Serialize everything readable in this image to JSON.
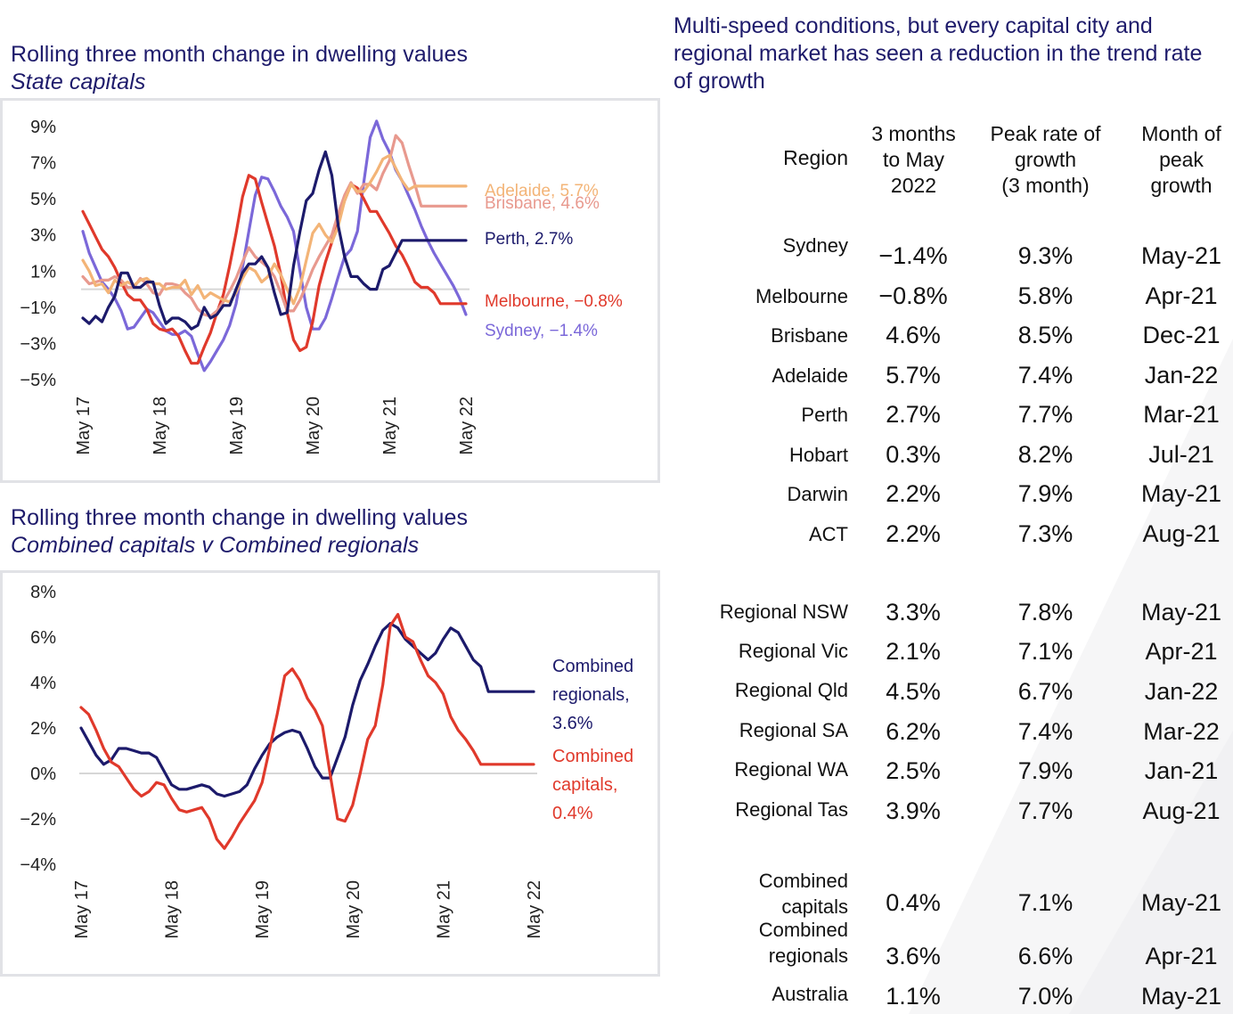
{
  "chart_data": [
    {
      "type": "line",
      "title": "Rolling three month change in dwelling values",
      "subtitle": "State capitals",
      "xlabel": "",
      "ylabel": "",
      "x_start": "May 17",
      "x_end": "May 22",
      "frequency": "monthly",
      "x_tick_labels": [
        "May 17",
        "May 18",
        "May 19",
        "May 20",
        "May 21",
        "May 22"
      ],
      "y_tick_labels": [
        "9%",
        "7%",
        "5%",
        "3%",
        "1%",
        "-1%",
        "-3%",
        "-5%"
      ],
      "ylim": [
        -5,
        9
      ],
      "zero_line": true,
      "grid": false,
      "legend": "end-labels-right",
      "series": [
        {
          "name": "Sydney",
          "label": "Sydney, -1.4%",
          "color": "#7b68d9",
          "values": [
            3.2,
            2.0,
            1.2,
            0.4,
            0.0,
            -0.5,
            -1.2,
            -2.2,
            -2.1,
            -1.6,
            -1.1,
            -1.3,
            -1.8,
            -2.3,
            -2.5,
            -2.5,
            -2.3,
            -2.6,
            -3.6,
            -4.5,
            -4.0,
            -3.4,
            -2.8,
            -2.0,
            -0.8,
            1.2,
            3.2,
            5.2,
            6.2,
            6.1,
            5.4,
            4.6,
            4.0,
            3.2,
            1.0,
            -1.0,
            -2.2,
            -2.2,
            -1.6,
            -0.5,
            0.7,
            1.8,
            2.2,
            3.2,
            5.9,
            8.4,
            9.3,
            8.3,
            7.6,
            6.6,
            6.0,
            5.2,
            4.4,
            3.5,
            2.7,
            2.0,
            1.4,
            0.8,
            0.2,
            -0.5,
            -1.4
          ]
        },
        {
          "name": "Melbourne",
          "label": "Melbourne, -0.8%",
          "color": "#e0392b",
          "values": [
            4.3,
            3.6,
            2.9,
            2.2,
            1.8,
            1.2,
            0.4,
            -0.3,
            -0.6,
            -0.6,
            -1.1,
            -1.9,
            -2.2,
            -2.3,
            -2.2,
            -2.6,
            -3.4,
            -4.1,
            -4.1,
            -3.2,
            -2.4,
            -1.3,
            -0.3,
            1.3,
            3.1,
            5.1,
            6.3,
            6.1,
            4.8,
            3.6,
            2.4,
            0.8,
            -1.3,
            -2.8,
            -3.4,
            -3.2,
            -1.8,
            0.2,
            1.5,
            2.6,
            3.8,
            4.9,
            5.8,
            5.6,
            5.0,
            4.3,
            4.3,
            3.7,
            3.1,
            2.4,
            1.9,
            1.2,
            0.4,
            0.1,
            0.1,
            -0.2,
            -0.8,
            -0.8,
            -0.8,
            -0.8,
            -0.8
          ]
        },
        {
          "name": "Brisbane",
          "label": "Brisbane, 4.6%",
          "color": "#e8998e",
          "values": [
            0.7,
            0.3,
            0.4,
            0.5,
            0.5,
            0.7,
            0.5,
            0.1,
            0.1,
            0.6,
            0.3,
            -0.2,
            -0.3,
            0.3,
            0.3,
            0.2,
            -0.2,
            -0.5,
            -1.1,
            -1.4,
            -1.5,
            -1.2,
            -0.7,
            -0.1,
            0.6,
            1.5,
            2.3,
            1.8,
            1.5,
            1.2,
            0.7,
            -0.2,
            -1.2,
            -1.2,
            -0.6,
            0.2,
            1.1,
            1.8,
            2.4,
            3.0,
            4.2,
            5.2,
            5.9,
            5.3,
            5.8,
            5.8,
            5.5,
            6.4,
            7.1,
            8.5,
            8.1,
            6.9,
            5.8,
            4.6,
            4.6,
            4.6,
            4.6,
            4.6,
            4.6,
            4.6,
            4.6
          ]
        },
        {
          "name": "Adelaide",
          "label": "Adelaide, 5.7%",
          "color": "#f3b477",
          "values": [
            1.6,
            1.0,
            0.2,
            0.3,
            -0.2,
            0.5,
            0.2,
            0.4,
            0.2,
            0.5,
            0.6,
            0.3,
            0.3,
            0.0,
            0.1,
            0.1,
            0.5,
            -0.3,
            0.2,
            -0.5,
            -0.2,
            -0.4,
            -0.6,
            -0.7,
            -0.2,
            0.6,
            1.2,
            1.0,
            0.4,
            0.7,
            1.4,
            0.8,
            0.0,
            -0.8,
            0.1,
            1.6,
            3.1,
            3.6,
            3.0,
            2.6,
            3.5,
            4.9,
            5.8,
            5.4,
            5.4,
            5.9,
            6.5,
            7.2,
            7.4,
            6.7,
            6.0,
            5.5,
            5.7,
            5.7,
            5.7,
            5.7,
            5.7,
            5.7,
            5.7,
            5.7,
            5.7
          ]
        },
        {
          "name": "Perth",
          "label": "Perth, 2.7%",
          "color": "#1c1a6b",
          "values": [
            -1.6,
            -1.9,
            -1.5,
            -1.8,
            -1.0,
            -0.4,
            0.9,
            0.9,
            0.1,
            0.1,
            0.4,
            0.4,
            -0.9,
            -1.9,
            -1.6,
            -1.6,
            -1.8,
            -2.2,
            -2.0,
            -1.0,
            -1.6,
            -1.4,
            -0.9,
            -0.9,
            0.0,
            0.9,
            1.4,
            1.4,
            1.8,
            1.2,
            -0.2,
            -1.4,
            -1.3,
            1.3,
            3.2,
            4.9,
            5.3,
            6.6,
            7.6,
            6.3,
            3.5,
            1.8,
            0.7,
            0.7,
            0.3,
            0.0,
            0.0,
            1.1,
            1.3,
            2.0,
            2.7,
            2.7,
            2.7,
            2.7,
            2.7,
            2.7,
            2.7,
            2.7,
            2.7,
            2.7,
            2.7
          ]
        }
      ]
    },
    {
      "type": "line",
      "title": "Rolling three month change in dwelling values",
      "subtitle": "Combined capitals v Combined regionals",
      "xlabel": "",
      "ylabel": "",
      "x_start": "May 17",
      "x_end": "May 22",
      "frequency": "monthly",
      "x_tick_labels": [
        "May 17",
        "May 18",
        "May 19",
        "May 20",
        "May 21",
        "May 22"
      ],
      "y_tick_labels": [
        "8%",
        "6%",
        "4%",
        "2%",
        "0%",
        "-2%",
        "-4%"
      ],
      "ylim": [
        -4,
        8
      ],
      "zero_line": true,
      "grid": false,
      "legend": "end-labels-right",
      "series": [
        {
          "name": "Combined regionals",
          "label_lines": [
            "Combined",
            "regionals,",
            "3.6%"
          ],
          "color": "#1c1a6b",
          "values": [
            2.0,
            1.4,
            0.8,
            0.4,
            0.6,
            1.1,
            1.1,
            1.0,
            0.9,
            0.9,
            0.7,
            0.1,
            -0.5,
            -0.7,
            -0.7,
            -0.6,
            -0.5,
            -0.6,
            -0.9,
            -1.0,
            -0.9,
            -0.8,
            -0.5,
            0.2,
            0.8,
            1.3,
            1.6,
            1.8,
            1.9,
            1.8,
            1.1,
            0.3,
            -0.2,
            -0.2,
            0.7,
            1.6,
            3.0,
            4.1,
            4.8,
            5.6,
            6.3,
            6.6,
            6.4,
            5.9,
            5.6,
            5.3,
            5.0,
            5.3,
            5.9,
            6.4,
            6.2,
            5.6,
            5.0,
            4.7,
            3.6,
            3.6,
            3.6,
            3.6,
            3.6,
            3.6,
            3.6
          ]
        },
        {
          "name": "Combined capitals",
          "label_lines": [
            "Combined",
            "capitals,",
            "0.4%"
          ],
          "color": "#e0392b",
          "values": [
            2.9,
            2.6,
            1.9,
            1.1,
            0.5,
            0.3,
            -0.2,
            -0.7,
            -1.0,
            -0.8,
            -0.4,
            -0.5,
            -1.1,
            -1.6,
            -1.7,
            -1.6,
            -1.5,
            -2.0,
            -2.9,
            -3.3,
            -2.8,
            -2.2,
            -1.7,
            -1.2,
            -0.4,
            1.1,
            2.6,
            4.3,
            4.6,
            4.1,
            3.3,
            2.8,
            2.1,
            0.0,
            -2.0,
            -2.1,
            -1.4,
            0.0,
            1.5,
            2.1,
            3.9,
            6.5,
            7.0,
            6.0,
            5.8,
            5.0,
            4.3,
            4.0,
            3.5,
            2.5,
            1.9,
            1.5,
            1.0,
            0.4,
            0.4,
            0.4,
            0.4,
            0.4,
            0.4,
            0.4,
            0.4
          ]
        }
      ]
    }
  ],
  "left": {
    "chart1_title": "Rolling three month change in dwelling values",
    "chart1_subtitle": "State capitals",
    "chart2_title": "Rolling three month change in dwelling values",
    "chart2_subtitle": "Combined capitals v Combined regionals"
  },
  "table": {
    "title": "Multi-speed conditions, but every capital city and regional market has seen a reduction in the trend rate of growth",
    "headers": {
      "region": "Region",
      "three_month": [
        "3 months",
        "to May",
        "2022"
      ],
      "peak_rate": [
        "Peak rate of",
        "growth",
        "(3 month)"
      ],
      "peak_month": [
        "Month of",
        "peak",
        "growth"
      ]
    },
    "groups": [
      [
        {
          "region": "Sydney",
          "change": "-1.4%",
          "peak": "9.3%",
          "month": "May-21"
        },
        {
          "region": "Melbourne",
          "change": "-0.8%",
          "peak": "5.8%",
          "month": "Apr-21"
        },
        {
          "region": "Brisbane",
          "change": "4.6%",
          "peak": "8.5%",
          "month": "Dec-21"
        },
        {
          "region": "Adelaide",
          "change": "5.7%",
          "peak": "7.4%",
          "month": "Jan-22"
        },
        {
          "region": "Perth",
          "change": "2.7%",
          "peak": "7.7%",
          "month": "Mar-21"
        },
        {
          "region": "Hobart",
          "change": "0.3%",
          "peak": "8.2%",
          "month": "Jul-21"
        },
        {
          "region": "Darwin",
          "change": "2.2%",
          "peak": "7.9%",
          "month": "May-21"
        },
        {
          "region": "ACT",
          "change": "2.2%",
          "peak": "7.3%",
          "month": "Aug-21"
        }
      ],
      [
        {
          "region": "Regional NSW",
          "change": "3.3%",
          "peak": "7.8%",
          "month": "May-21"
        },
        {
          "region": "Regional Vic",
          "change": "2.1%",
          "peak": "7.1%",
          "month": "Apr-21"
        },
        {
          "region": "Regional Qld",
          "change": "4.5%",
          "peak": "6.7%",
          "month": "Jan-22"
        },
        {
          "region": "Regional SA",
          "change": "6.2%",
          "peak": "7.4%",
          "month": "Mar-22"
        },
        {
          "region": "Regional WA",
          "change": "2.5%",
          "peak": "7.9%",
          "month": "Jan-21"
        },
        {
          "region": "Regional Tas",
          "change": "3.9%",
          "peak": "7.7%",
          "month": "Aug-21"
        }
      ],
      [
        {
          "region": "Combined capitals",
          "region_lines": [
            "Combined",
            "capitals"
          ],
          "change": "0.4%",
          "peak": "7.1%",
          "month": "May-21"
        },
        {
          "region": "Combined regionals",
          "region_lines": [
            "Combined",
            "regionals"
          ],
          "change": "3.6%",
          "peak": "6.6%",
          "month": "Apr-21"
        },
        {
          "region": "Australia",
          "change": "1.1%",
          "peak": "7.0%",
          "month": "May-21"
        }
      ]
    ]
  },
  "colors": {
    "title_navy": "#1e1b6b",
    "frame_gray": "#e1e2e6",
    "zero_line": "#d6d6d6"
  }
}
